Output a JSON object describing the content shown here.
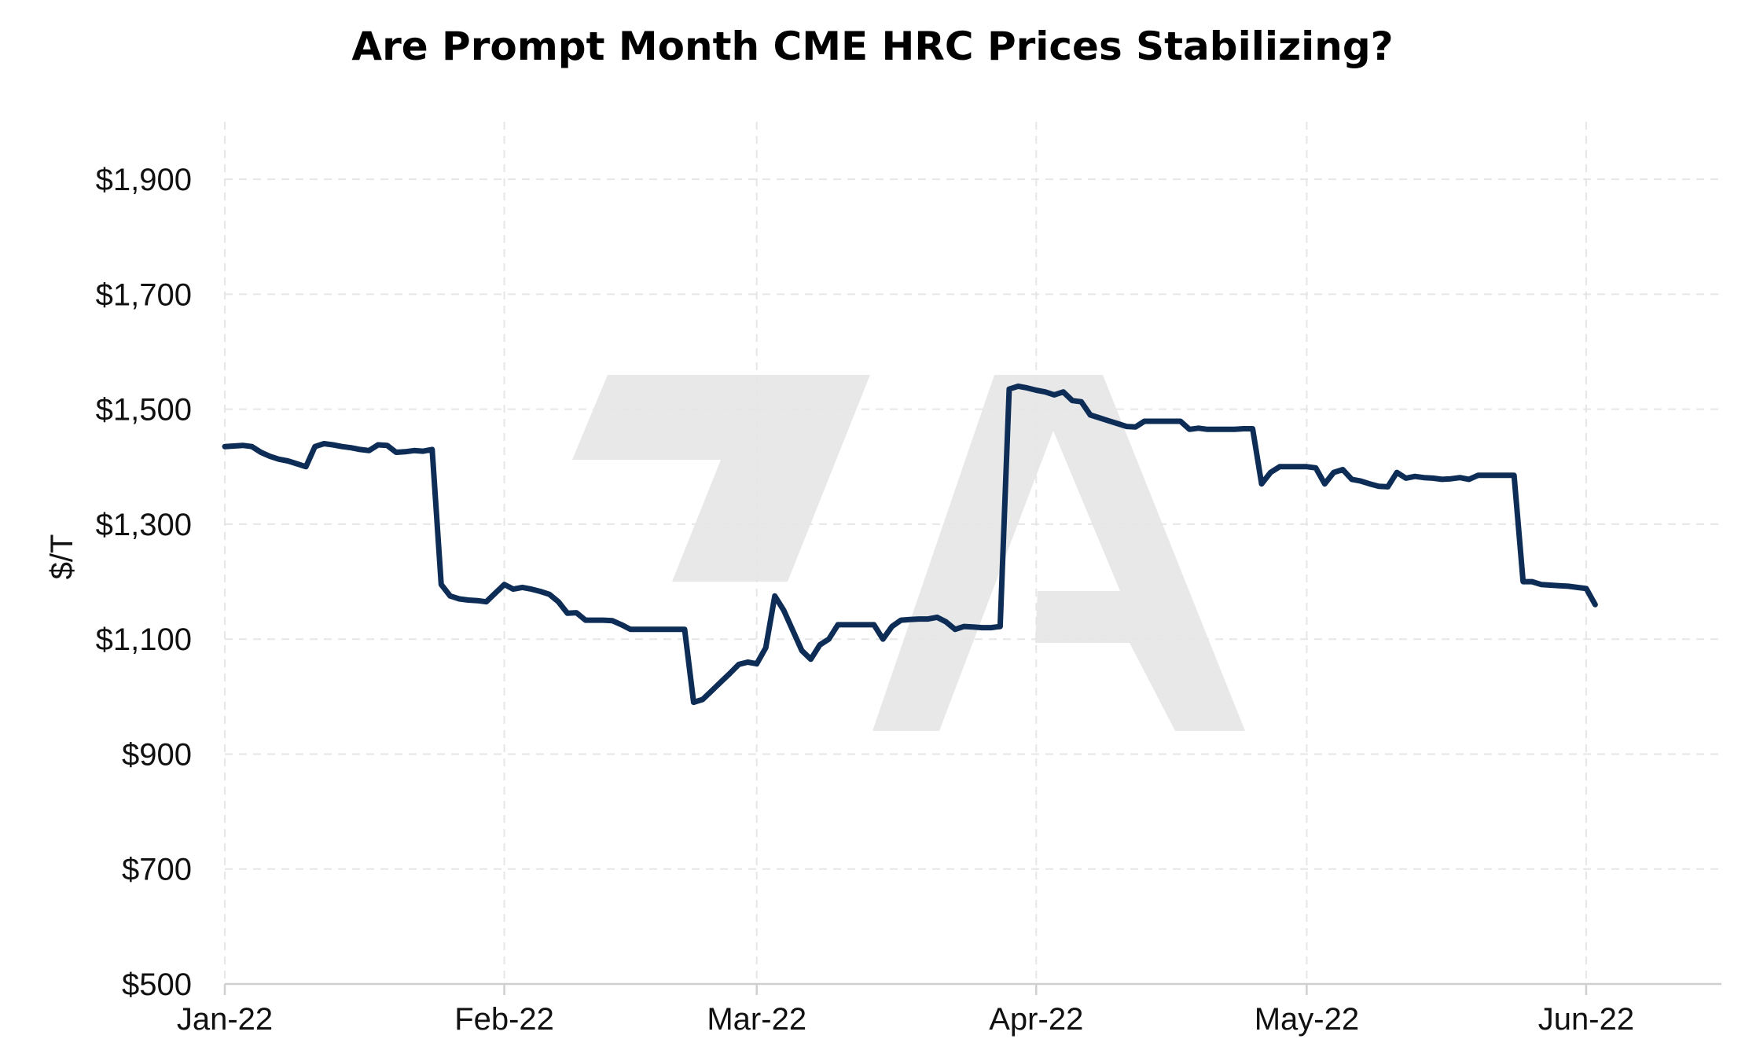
{
  "chart_data": {
    "type": "line",
    "title": "Are Prompt Month CME HRC Prices Stabilizing?",
    "ylabel": "$/T",
    "xlabel": "",
    "ylim": [
      500,
      2000
    ],
    "y_ticks": [
      500,
      700,
      900,
      1100,
      1300,
      1500,
      1700,
      1900
    ],
    "y_tick_labels": [
      "$500",
      "$700",
      "$900",
      "$1,100",
      "$1,300",
      "$1,500",
      "$1,700",
      "$1,900"
    ],
    "x_range": [
      "2022-01-01",
      "2022-06-16"
    ],
    "x_ticks": [
      "2022-01-01",
      "2022-02-01",
      "2022-03-01",
      "2022-04-01",
      "2022-05-01",
      "2022-06-01"
    ],
    "x_tick_labels": [
      "Jan-22",
      "Feb-22",
      "Mar-22",
      "Apr-22",
      "May-22",
      "Jun-22"
    ],
    "grid": true,
    "colors": {
      "series": "#0d2d57",
      "grid": "#e6e6e6",
      "axis": "#cfcfcf",
      "watermark": "#e8e8e8"
    },
    "watermark": "7A",
    "series": [
      {
        "name": "",
        "points": [
          [
            "2022-01-01",
            1435
          ],
          [
            "2022-01-02",
            1436
          ],
          [
            "2022-01-03",
            1437
          ],
          [
            "2022-01-04",
            1435
          ],
          [
            "2022-01-05",
            1425
          ],
          [
            "2022-01-06",
            1418
          ],
          [
            "2022-01-07",
            1413
          ],
          [
            "2022-01-08",
            1410
          ],
          [
            "2022-01-09",
            1405
          ],
          [
            "2022-01-10",
            1400
          ],
          [
            "2022-01-11",
            1435
          ],
          [
            "2022-01-12",
            1440
          ],
          [
            "2022-01-13",
            1438
          ],
          [
            "2022-01-14",
            1435
          ],
          [
            "2022-01-15",
            1433
          ],
          [
            "2022-01-16",
            1430
          ],
          [
            "2022-01-17",
            1428
          ],
          [
            "2022-01-18",
            1438
          ],
          [
            "2022-01-19",
            1437
          ],
          [
            "2022-01-20",
            1425
          ],
          [
            "2022-01-21",
            1426
          ],
          [
            "2022-01-22",
            1428
          ],
          [
            "2022-01-23",
            1427
          ],
          [
            "2022-01-24",
            1430
          ],
          [
            "2022-01-25",
            1195
          ],
          [
            "2022-01-26",
            1175
          ],
          [
            "2022-01-27",
            1170
          ],
          [
            "2022-01-28",
            1168
          ],
          [
            "2022-01-29",
            1167
          ],
          [
            "2022-01-30",
            1165
          ],
          [
            "2022-01-31",
            1180
          ],
          [
            "2022-02-01",
            1195
          ],
          [
            "2022-02-02",
            1187
          ],
          [
            "2022-02-03",
            1190
          ],
          [
            "2022-02-04",
            1187
          ],
          [
            "2022-02-05",
            1183
          ],
          [
            "2022-02-06",
            1178
          ],
          [
            "2022-02-07",
            1165
          ],
          [
            "2022-02-08",
            1145
          ],
          [
            "2022-02-09",
            1146
          ],
          [
            "2022-02-10",
            1133
          ],
          [
            "2022-02-11",
            1133
          ],
          [
            "2022-02-12",
            1133
          ],
          [
            "2022-02-13",
            1132
          ],
          [
            "2022-02-14",
            1125
          ],
          [
            "2022-02-15",
            1117
          ],
          [
            "2022-02-16",
            1117
          ],
          [
            "2022-02-17",
            1117
          ],
          [
            "2022-02-18",
            1117
          ],
          [
            "2022-02-19",
            1117
          ],
          [
            "2022-02-20",
            1117
          ],
          [
            "2022-02-21",
            1117
          ],
          [
            "2022-02-22",
            990
          ],
          [
            "2022-02-23",
            995
          ],
          [
            "2022-02-24",
            1010
          ],
          [
            "2022-02-25",
            1025
          ],
          [
            "2022-02-26",
            1040
          ],
          [
            "2022-02-27",
            1056
          ],
          [
            "2022-02-28",
            1060
          ],
          [
            "2022-03-01",
            1057
          ],
          [
            "2022-03-02",
            1085
          ],
          [
            "2022-03-03",
            1175
          ],
          [
            "2022-03-04",
            1150
          ],
          [
            "2022-03-05",
            1115
          ],
          [
            "2022-03-06",
            1080
          ],
          [
            "2022-03-07",
            1065
          ],
          [
            "2022-03-08",
            1090
          ],
          [
            "2022-03-09",
            1100
          ],
          [
            "2022-03-10",
            1125
          ],
          [
            "2022-03-11",
            1125
          ],
          [
            "2022-03-12",
            1125
          ],
          [
            "2022-03-13",
            1125
          ],
          [
            "2022-03-14",
            1125
          ],
          [
            "2022-03-15",
            1100
          ],
          [
            "2022-03-16",
            1122
          ],
          [
            "2022-03-17",
            1133
          ],
          [
            "2022-03-18",
            1134
          ],
          [
            "2022-03-19",
            1135
          ],
          [
            "2022-03-20",
            1135
          ],
          [
            "2022-03-21",
            1138
          ],
          [
            "2022-03-22",
            1130
          ],
          [
            "2022-03-23",
            1117
          ],
          [
            "2022-03-24",
            1122
          ],
          [
            "2022-03-25",
            1121
          ],
          [
            "2022-03-26",
            1120
          ],
          [
            "2022-03-27",
            1120
          ],
          [
            "2022-03-28",
            1122
          ],
          [
            "2022-03-29",
            1535
          ],
          [
            "2022-03-30",
            1540
          ],
          [
            "2022-03-31",
            1537
          ],
          [
            "2022-04-01",
            1533
          ],
          [
            "2022-04-02",
            1530
          ],
          [
            "2022-04-03",
            1525
          ],
          [
            "2022-04-04",
            1530
          ],
          [
            "2022-04-05",
            1515
          ],
          [
            "2022-04-06",
            1513
          ],
          [
            "2022-04-07",
            1490
          ],
          [
            "2022-04-08",
            1485
          ],
          [
            "2022-04-09",
            1480
          ],
          [
            "2022-04-10",
            1475
          ],
          [
            "2022-04-11",
            1470
          ],
          [
            "2022-04-12",
            1469
          ],
          [
            "2022-04-13",
            1479
          ],
          [
            "2022-04-14",
            1479
          ],
          [
            "2022-04-15",
            1479
          ],
          [
            "2022-04-16",
            1479
          ],
          [
            "2022-04-17",
            1479
          ],
          [
            "2022-04-18",
            1465
          ],
          [
            "2022-04-19",
            1467
          ],
          [
            "2022-04-20",
            1465
          ],
          [
            "2022-04-21",
            1465
          ],
          [
            "2022-04-22",
            1465
          ],
          [
            "2022-04-23",
            1465
          ],
          [
            "2022-04-24",
            1466
          ],
          [
            "2022-04-25",
            1466
          ],
          [
            "2022-04-26",
            1370
          ],
          [
            "2022-04-27",
            1390
          ],
          [
            "2022-04-28",
            1400
          ],
          [
            "2022-04-29",
            1400
          ],
          [
            "2022-04-30",
            1400
          ],
          [
            "2022-05-01",
            1400
          ],
          [
            "2022-05-02",
            1398
          ],
          [
            "2022-05-03",
            1370
          ],
          [
            "2022-05-04",
            1390
          ],
          [
            "2022-05-05",
            1395
          ],
          [
            "2022-05-06",
            1378
          ],
          [
            "2022-05-07",
            1375
          ],
          [
            "2022-05-08",
            1370
          ],
          [
            "2022-05-09",
            1366
          ],
          [
            "2022-05-10",
            1365
          ],
          [
            "2022-05-11",
            1390
          ],
          [
            "2022-05-12",
            1380
          ],
          [
            "2022-05-13",
            1383
          ],
          [
            "2022-05-14",
            1381
          ],
          [
            "2022-05-15",
            1380
          ],
          [
            "2022-05-16",
            1378
          ],
          [
            "2022-05-17",
            1379
          ],
          [
            "2022-05-18",
            1381
          ],
          [
            "2022-05-19",
            1378
          ],
          [
            "2022-05-20",
            1385
          ],
          [
            "2022-05-21",
            1385
          ],
          [
            "2022-05-22",
            1385
          ],
          [
            "2022-05-23",
            1385
          ],
          [
            "2022-05-24",
            1385
          ],
          [
            "2022-05-25",
            1200
          ],
          [
            "2022-05-26",
            1200
          ],
          [
            "2022-05-27",
            1195
          ],
          [
            "2022-05-28",
            1194
          ],
          [
            "2022-05-29",
            1193
          ],
          [
            "2022-05-30",
            1192
          ],
          [
            "2022-05-31",
            1190
          ],
          [
            "2022-06-01",
            1188
          ],
          [
            "2022-06-02",
            1160
          ]
        ]
      }
    ]
  }
}
